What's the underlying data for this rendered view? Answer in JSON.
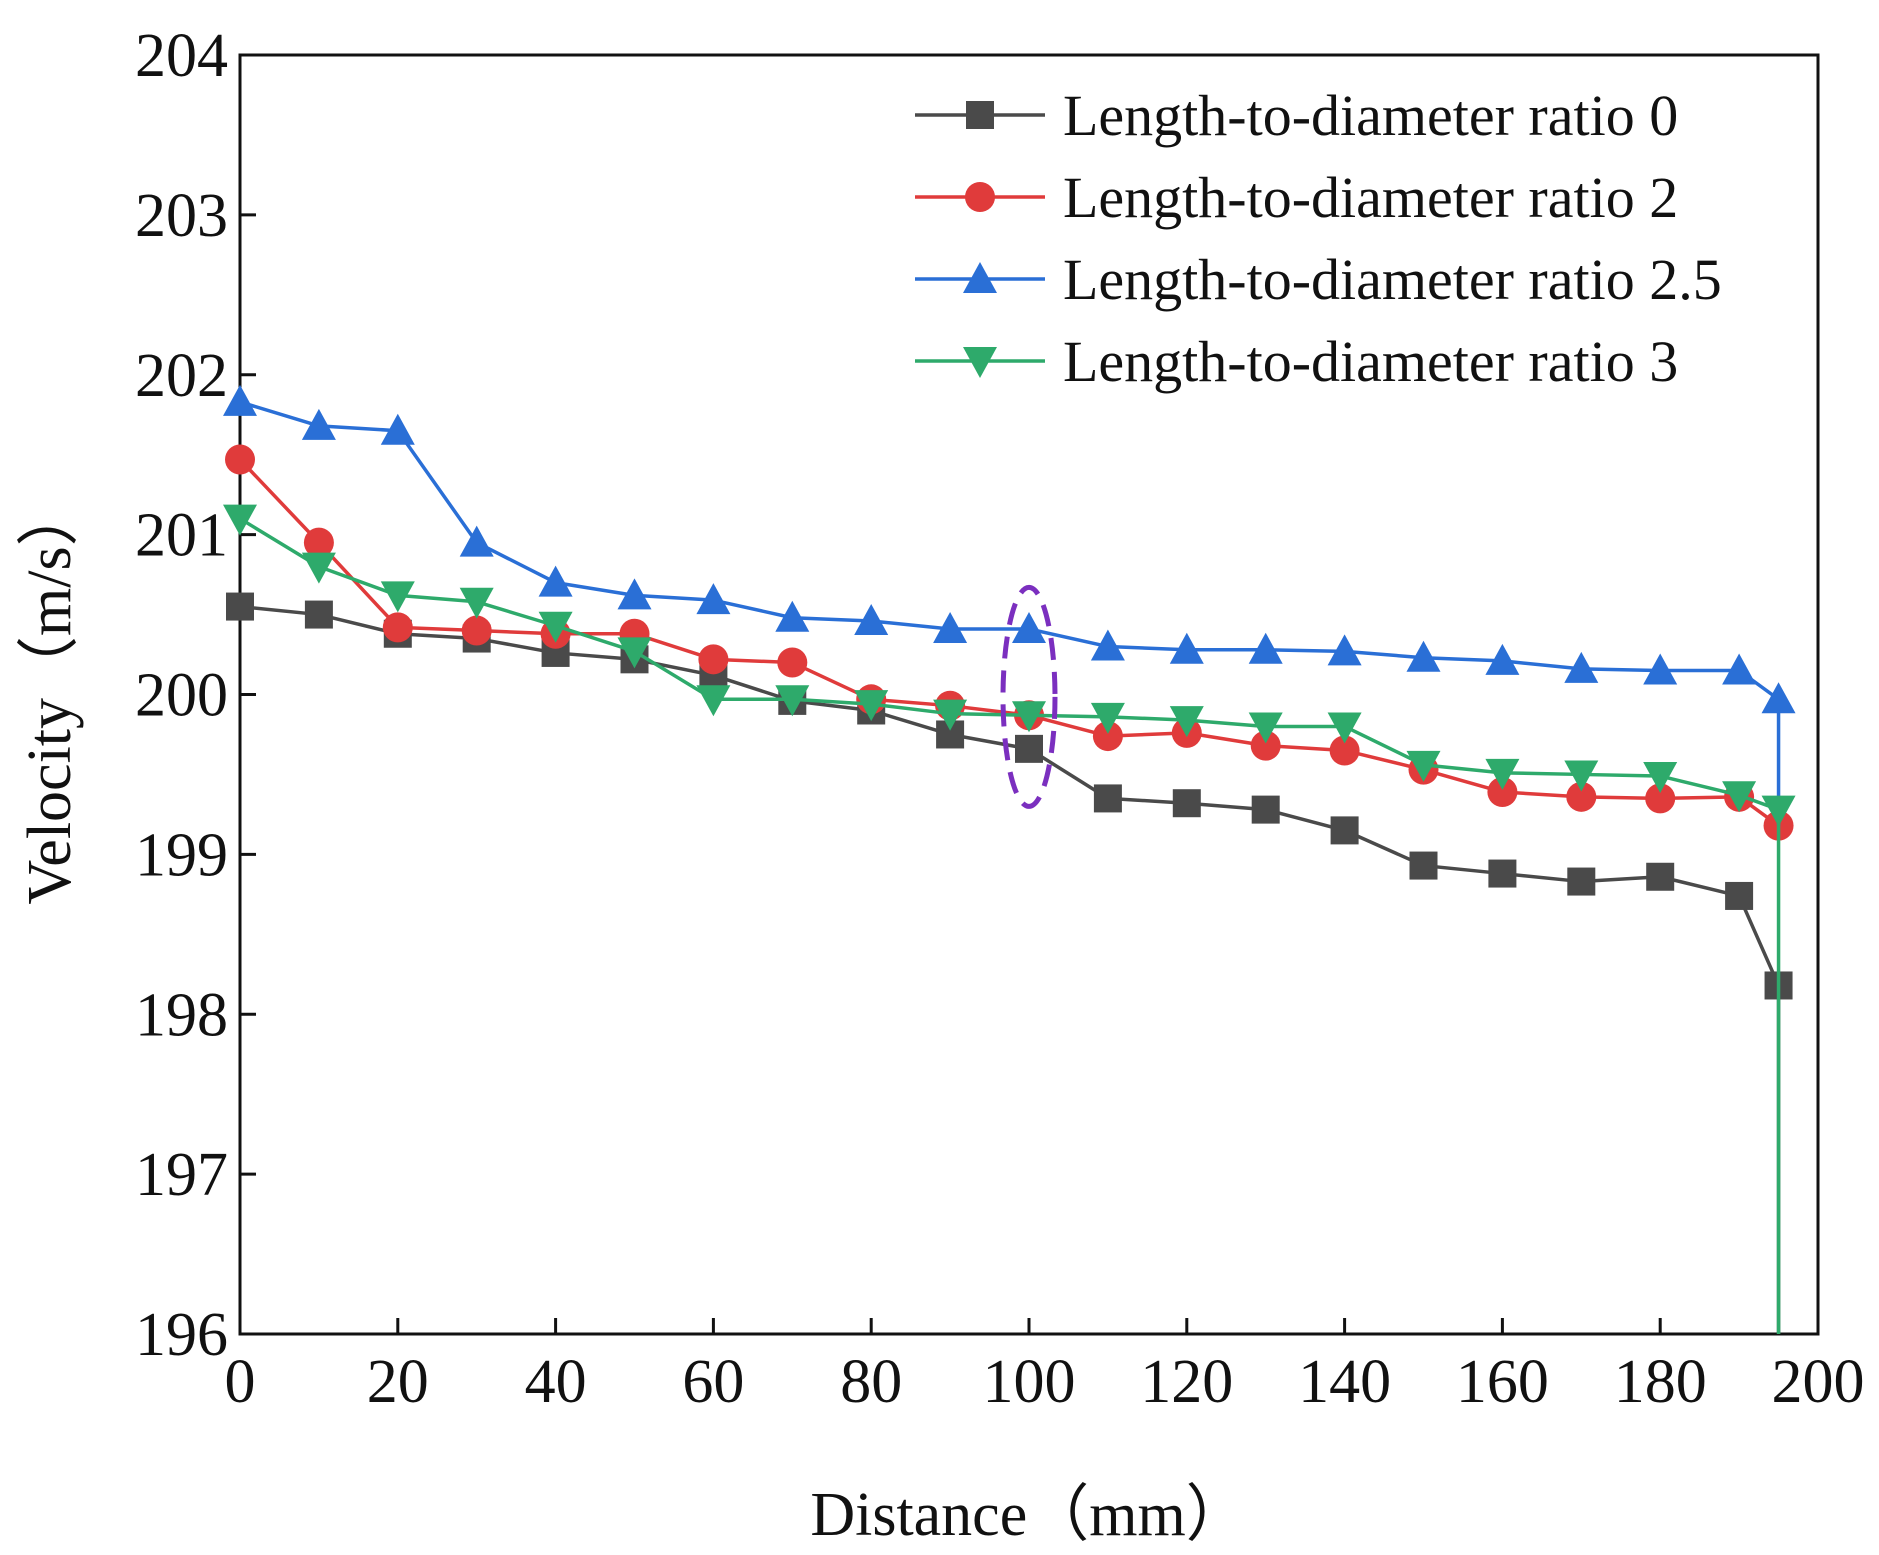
{
  "chart_data": {
    "type": "line",
    "title": "",
    "xlabel": "Distance（mm）",
    "ylabel": "Velocity（m/s）",
    "xlim": [
      0,
      200
    ],
    "ylim": [
      196,
      204
    ],
    "x_ticks": [
      0,
      20,
      40,
      60,
      80,
      100,
      120,
      140,
      160,
      180,
      200
    ],
    "y_ticks": [
      196,
      197,
      198,
      199,
      200,
      201,
      202,
      203,
      204
    ],
    "x_tick_labels": [
      "0",
      "20",
      "40",
      "60",
      "80",
      "100",
      "120",
      "140",
      "160",
      "180",
      "200"
    ],
    "y_tick_labels": [
      "196",
      "197",
      "198",
      "199",
      "200",
      "201",
      "202",
      "203",
      "204"
    ],
    "grid": false,
    "legend_position": "top-right",
    "x": [
      0,
      10,
      20,
      30,
      40,
      50,
      60,
      70,
      80,
      90,
      100,
      110,
      120,
      130,
      140,
      150,
      160,
      170,
      180,
      190,
      195
    ],
    "series": [
      {
        "name": "Length-to-diameter ratio 0",
        "color": "#4a4a4a",
        "marker": "square",
        "values": [
          200.55,
          200.5,
          200.38,
          200.35,
          200.26,
          200.22,
          200.12,
          199.96,
          199.9,
          199.75,
          199.66,
          199.35,
          199.32,
          199.28,
          199.15,
          198.93,
          198.88,
          198.83,
          198.86,
          198.74,
          198.18
        ],
        "drop_to": 196
      },
      {
        "name": "Length-to-diameter ratio 2",
        "color": "#e03b3b",
        "marker": "circle",
        "values": [
          201.47,
          200.95,
          200.42,
          200.4,
          200.38,
          200.38,
          200.22,
          200.2,
          199.97,
          199.93,
          199.87,
          199.74,
          199.76,
          199.68,
          199.65,
          199.53,
          199.39,
          199.36,
          199.35,
          199.36,
          199.18
        ]
      },
      {
        "name": "Length-to-diameter ratio 2.5",
        "color": "#2a6fd6",
        "marker": "triangle-up",
        "values": [
          201.83,
          201.68,
          201.65,
          200.95,
          200.7,
          200.62,
          200.59,
          200.48,
          200.46,
          200.41,
          200.41,
          200.3,
          200.28,
          200.28,
          200.27,
          200.23,
          200.21,
          200.16,
          200.15,
          200.15,
          199.97
        ],
        "drop_to": 199.18
      },
      {
        "name": "Length-to-diameter ratio 3",
        "color": "#2eaa6b",
        "marker": "triangle-down",
        "values": [
          201.1,
          200.8,
          200.62,
          200.58,
          200.43,
          200.27,
          199.97,
          199.97,
          199.94,
          199.88,
          199.87,
          199.86,
          199.84,
          199.8,
          199.8,
          199.56,
          199.51,
          199.5,
          199.49,
          199.37,
          199.28
        ],
        "drop_to": 196
      }
    ],
    "annotations": [
      {
        "type": "dashed-ellipse",
        "color": "#7b2fbf",
        "x_center": 100,
        "y_range": [
          199.3,
          200.67
        ]
      }
    ]
  }
}
